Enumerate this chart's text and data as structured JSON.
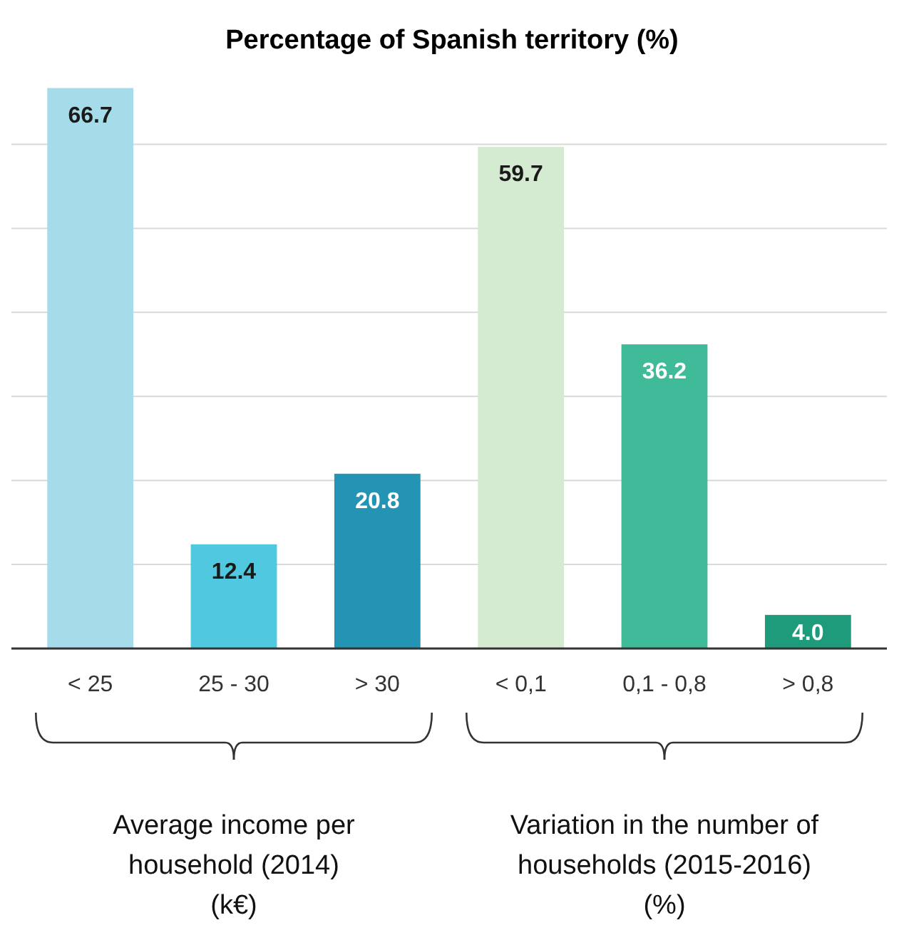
{
  "chart_data": {
    "type": "bar",
    "title": "Percentage of Spanish territory (%)",
    "categories": [
      "< 25",
      "25 - 30",
      "> 30",
      "< 0,1",
      "0,1 - 0,8",
      "> 0,8"
    ],
    "values": [
      66.7,
      12.4,
      20.8,
      59.7,
      36.2,
      4.0
    ],
    "colors": [
      "#a6dbea",
      "#4fc8e0",
      "#2394b3",
      "#d5ebd1",
      "#3fbb99",
      "#1e9b7b"
    ],
    "value_labels": [
      "66.7",
      "12.4",
      "20.8",
      "59.7",
      "36.2",
      "4.0"
    ],
    "ylim": [
      0,
      67
    ],
    "yticks": [
      {
        "value": 0,
        "label": null
      },
      {
        "value": 10,
        "label": null
      },
      {
        "value": 20,
        "label": null
      },
      {
        "value": 30,
        "label": null
      },
      {
        "value": 40,
        "label": null
      },
      {
        "value": 50,
        "label": null
      },
      {
        "value": 60,
        "label": null
      }
    ],
    "grid": "y",
    "tick_labels": "x",
    "annotations": [
      "Average income per household (2014) (k€)",
      "Variation in the number of households (2015-2016) (%)"
    ]
  }
}
